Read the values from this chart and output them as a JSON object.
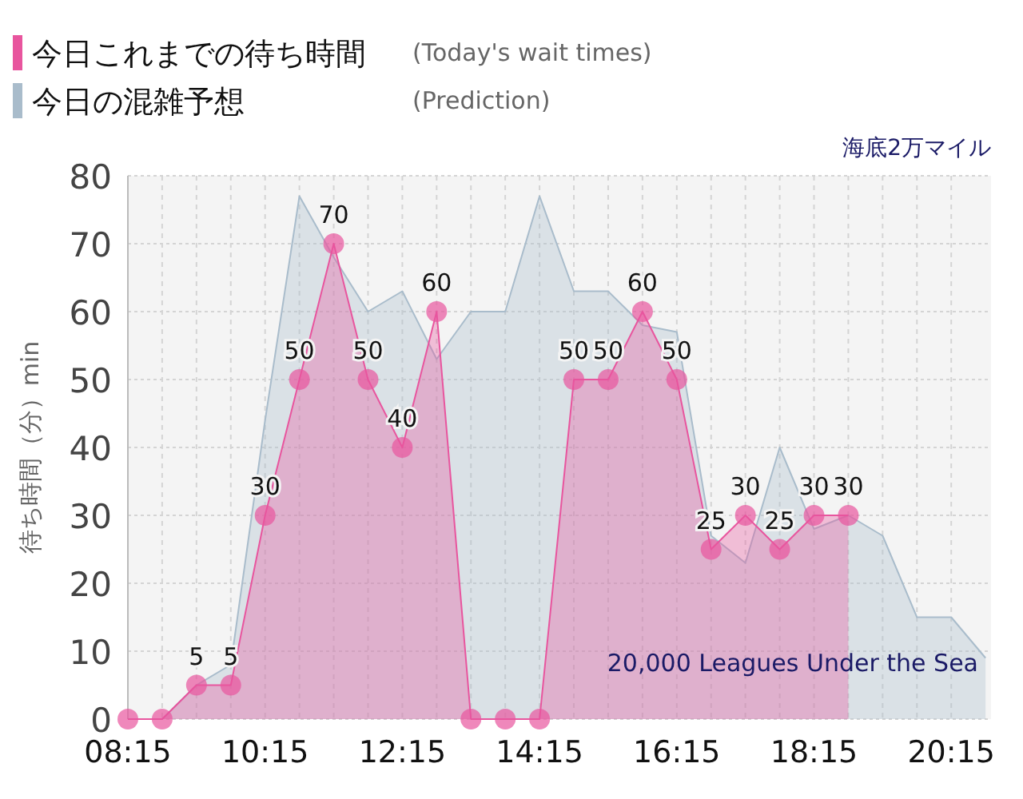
{
  "chart_data": {
    "type": "area",
    "title": "海底2万マイル",
    "subtitle": "20,000 Leagues Under the Sea",
    "ylabel": "待ち時間（分）min",
    "annotations": [
      "(Today's wait times)",
      "(Prediction)"
    ],
    "xlim": [
      8.25,
      20.83
    ],
    "xticks": [
      {
        "value": 8.25,
        "label": "08:15"
      },
      {
        "value": 8.75,
        "label": null
      },
      {
        "value": 9.25,
        "label": null
      },
      {
        "value": 9.75,
        "label": null
      },
      {
        "value": 10.25,
        "label": "10:15"
      },
      {
        "value": 10.75,
        "label": null
      },
      {
        "value": 11.25,
        "label": null
      },
      {
        "value": 11.75,
        "label": null
      },
      {
        "value": 12.25,
        "label": "12:15"
      },
      {
        "value": 12.75,
        "label": null
      },
      {
        "value": 13.25,
        "label": null
      },
      {
        "value": 13.75,
        "label": null
      },
      {
        "value": 14.25,
        "label": "14:15"
      },
      {
        "value": 14.75,
        "label": null
      },
      {
        "value": 15.25,
        "label": null
      },
      {
        "value": 15.75,
        "label": null
      },
      {
        "value": 16.25,
        "label": "16:15"
      },
      {
        "value": 16.75,
        "label": null
      },
      {
        "value": 17.25,
        "label": null
      },
      {
        "value": 17.75,
        "label": null
      },
      {
        "value": 18.25,
        "label": "18:15"
      },
      {
        "value": 18.75,
        "label": null
      },
      {
        "value": 19.25,
        "label": null
      },
      {
        "value": 19.75,
        "label": null
      },
      {
        "value": 20.25,
        "label": "20:15"
      }
    ],
    "ylim": [
      0,
      80
    ],
    "yticks": [
      0,
      10,
      20,
      30,
      40,
      50,
      60,
      70,
      80
    ],
    "grid": true,
    "legend": "top left",
    "series": [
      {
        "name": "今日の混雑予想",
        "color": "#a9bccb",
        "marker": "none",
        "x": [
          8.25,
          8.75,
          9.25,
          9.75,
          10.25,
          10.75,
          11.25,
          11.75,
          12.25,
          12.75,
          13.25,
          13.75,
          14.25,
          14.75,
          15.25,
          15.75,
          16.25,
          16.75,
          17.25,
          17.75,
          18.25,
          18.75,
          19.25,
          19.75,
          20.25,
          20.75
        ],
        "values": [
          0,
          0,
          5,
          8,
          44,
          77,
          68,
          60,
          63,
          53,
          60,
          60,
          77,
          63,
          63,
          58,
          57,
          27,
          23,
          40,
          28,
          30,
          27,
          15,
          15,
          9
        ]
      },
      {
        "name": "今日これまでの待ち時間",
        "color": "#e8559e",
        "marker": "circle",
        "x": [
          8.25,
          8.75,
          9.25,
          9.75,
          10.25,
          10.75,
          11.25,
          11.75,
          12.25,
          12.75,
          13.25,
          13.75,
          14.25,
          14.75,
          15.25,
          15.75,
          16.25,
          16.75,
          17.25,
          17.75,
          18.25,
          18.75
        ],
        "values": [
          0,
          0,
          5,
          5,
          30,
          50,
          70,
          50,
          40,
          60,
          0,
          0,
          0,
          50,
          50,
          60,
          50,
          25,
          30,
          25,
          30,
          30
        ],
        "value_labels": [
          null,
          null,
          "5",
          "5",
          "30",
          "50",
          "70",
          "50",
          "40",
          "60",
          null,
          null,
          null,
          "50",
          "50",
          "60",
          "50",
          "25",
          "30",
          "25",
          "30",
          "30"
        ]
      }
    ]
  }
}
